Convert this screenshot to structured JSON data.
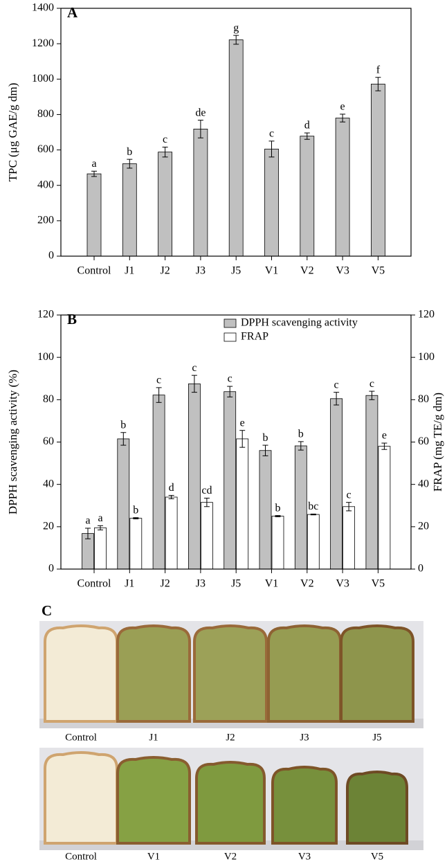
{
  "chart_data": [
    {
      "type": "bar",
      "panel": "A",
      "y_label": "TPC (μg GAE/g dm)",
      "categories": [
        "Control",
        "J1",
        "J2",
        "J3",
        "J5",
        "V1",
        "V2",
        "V3",
        "V5"
      ],
      "values": [
        465,
        522,
        588,
        718,
        1222,
        605,
        678,
        780,
        972
      ],
      "errors": [
        15,
        25,
        28,
        50,
        25,
        45,
        18,
        22,
        38
      ],
      "letters": [
        "a",
        "b",
        "c",
        "de",
        "g",
        "c",
        "d",
        "e",
        "f"
      ],
      "color": "#c0c0c0",
      "ylim": [
        0,
        1400
      ],
      "yticks": [
        0,
        200,
        400,
        600,
        800,
        1000,
        1200,
        1400
      ]
    },
    {
      "type": "bar",
      "panel": "B",
      "y_label": "DPPH scavenging activity (%)",
      "y2_label": "FRAP (mg TE/g dm)",
      "categories": [
        "Control",
        "J1",
        "J2",
        "J3",
        "J5",
        "V1",
        "V2",
        "V3",
        "V5"
      ],
      "series": [
        {
          "name": "DPPH scavenging activity",
          "color": "#c0c0c0",
          "values": [
            16.8,
            61.5,
            82.2,
            87.5,
            83.8,
            56,
            58.2,
            80.5,
            82
          ],
          "errors": [
            2.5,
            3,
            3.5,
            4,
            2.5,
            2.5,
            2,
            3,
            2
          ],
          "letters": [
            "a",
            "b",
            "c",
            "c",
            "c",
            "b",
            "b",
            "c",
            "c"
          ]
        },
        {
          "name": "FRAP",
          "color": "#ffffff",
          "axis": "y2",
          "values": [
            19.5,
            24,
            34,
            31.5,
            61.5,
            25,
            25.8,
            29.5,
            58
          ],
          "errors": [
            1,
            0.3,
            0.8,
            2,
            4,
            0.3,
            0.2,
            2,
            1.5
          ],
          "letters": [
            "a",
            "b",
            "d",
            "cd",
            "e",
            "b",
            "bc",
            "c",
            "e"
          ]
        }
      ],
      "legend": "upper right",
      "ylim": [
        0,
        120
      ],
      "yticks": [
        0,
        20,
        40,
        60,
        80,
        100,
        120
      ],
      "y2lim": [
        0,
        120
      ],
      "y2ticks": [
        0,
        20,
        40,
        60,
        80,
        100,
        120
      ]
    }
  ],
  "photo_panel": {
    "label": "C",
    "rows": [
      [
        "Control",
        "J1",
        "J2",
        "J3",
        "J5"
      ],
      [
        "Control",
        "V1",
        "V2",
        "V3",
        "V5"
      ]
    ]
  }
}
